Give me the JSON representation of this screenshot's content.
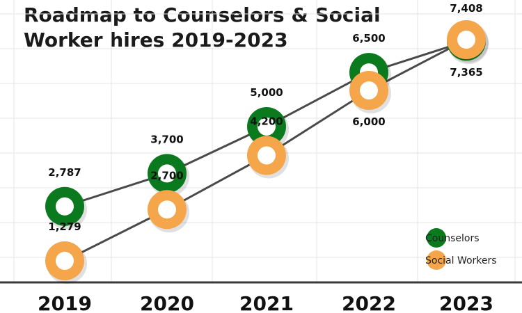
{
  "title": "Roadmap to Counselors & Social Worker hires 2019-2023",
  "colors": {
    "Counselors": "#0b7a1f",
    "Social Workers": "#f5a54a",
    "line": "#4a4a4a",
    "grid": "#e6e6e6"
  },
  "chart_data": {
    "type": "line",
    "title": "Roadmap to Counselors & Social Worker hires 2019-2023",
    "xlabel": "",
    "ylabel": "",
    "categories": [
      "2019",
      "2020",
      "2021",
      "2022",
      "2023"
    ],
    "series": [
      {
        "name": "Counselors",
        "values": [
          2787,
          3700,
          5000,
          6500,
          7365
        ],
        "labels": [
          "2,787",
          "3,700",
          "5,000",
          "6,500",
          "7,365"
        ]
      },
      {
        "name": "Social Workers",
        "values": [
          1279,
          2700,
          4200,
          6000,
          7408
        ],
        "labels": [
          "1,279",
          "2,700",
          "4,200",
          "6,000",
          "7,408"
        ]
      }
    ],
    "grid": true,
    "legend": "bottom-right"
  }
}
